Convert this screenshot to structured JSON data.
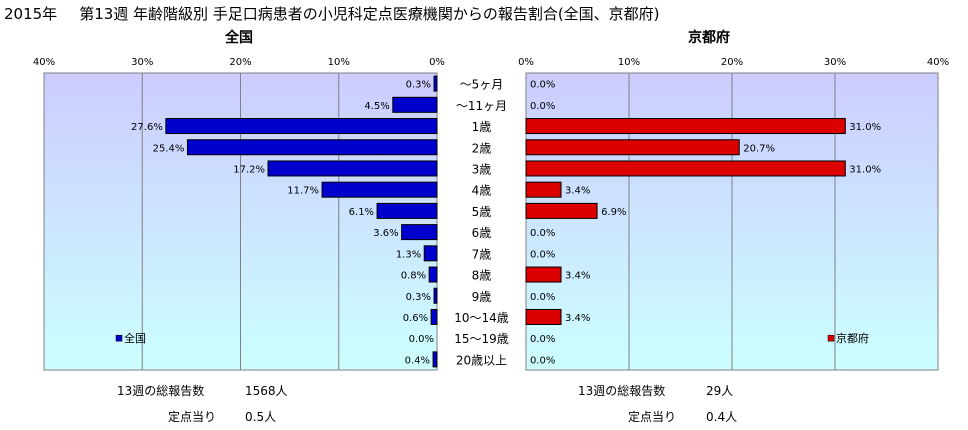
{
  "title": {
    "year": "2015年",
    "main": "第13週 年齢階級別 手足口病患者の小児科定点医療機関からの報告割合(全国、京都府)"
  },
  "chart_data": {
    "type": "bar",
    "orientation": "horizontal",
    "categories": [
      "～5ヶ月",
      "～11ヶ月",
      "1歳",
      "2歳",
      "3歳",
      "4歳",
      "5歳",
      "6歳",
      "7歳",
      "8歳",
      "9歳",
      "10～14歳",
      "15～19歳",
      "20歳以上"
    ],
    "series": [
      {
        "name": "全国",
        "panel_title": "全国",
        "values": [
          0.3,
          4.5,
          27.6,
          25.4,
          17.2,
          11.7,
          6.1,
          3.6,
          1.3,
          0.8,
          0.3,
          0.6,
          0.0,
          0.4
        ],
        "labels": [
          "0.3%",
          "4.5%",
          "27.6%",
          "25.4%",
          "17.2%",
          "11.7%",
          "6.1%",
          "3.6%",
          "1.3%",
          "0.8%",
          "0.3%",
          "0.6%",
          "0.0%",
          "0.4%"
        ],
        "color": "#0000cc",
        "xlim": [
          0,
          40
        ],
        "ticks": [
          "0%",
          "10%",
          "20%",
          "30%",
          "40%"
        ],
        "direction": "reversed",
        "legend": "bottom-left"
      },
      {
        "name": "京都府",
        "panel_title": "京都府",
        "values": [
          0.0,
          0.0,
          31.0,
          20.7,
          31.0,
          3.4,
          6.9,
          0.0,
          0.0,
          3.4,
          0.0,
          3.4,
          0.0,
          0.0
        ],
        "labels": [
          "0.0%",
          "0.0%",
          "31.0%",
          "20.7%",
          "31.0%",
          "3.4%",
          "6.9%",
          "0.0%",
          "0.0%",
          "3.4%",
          "0.0%",
          "3.4%",
          "0.0%",
          "0.0%"
        ],
        "color": "#dd0000",
        "xlim": [
          0,
          40
        ],
        "ticks": [
          "0%",
          "10%",
          "20%",
          "30%",
          "40%"
        ],
        "direction": "normal",
        "legend": "bottom-right"
      }
    ],
    "grid": true
  },
  "summary": {
    "national": {
      "reports_label": "13週の総報告数",
      "reports_value": "1568人",
      "per_site_label": "定点当り",
      "per_site_value": "0.5人"
    },
    "kyoto": {
      "reports_label": "13週の総報告数",
      "reports_value": "29人",
      "per_site_label": "定点当り",
      "per_site_value": "0.4人"
    }
  },
  "colors": {
    "plot_bg_top": "#ccccff",
    "plot_bg_bottom": "#ccffff",
    "grid": "#808080"
  }
}
